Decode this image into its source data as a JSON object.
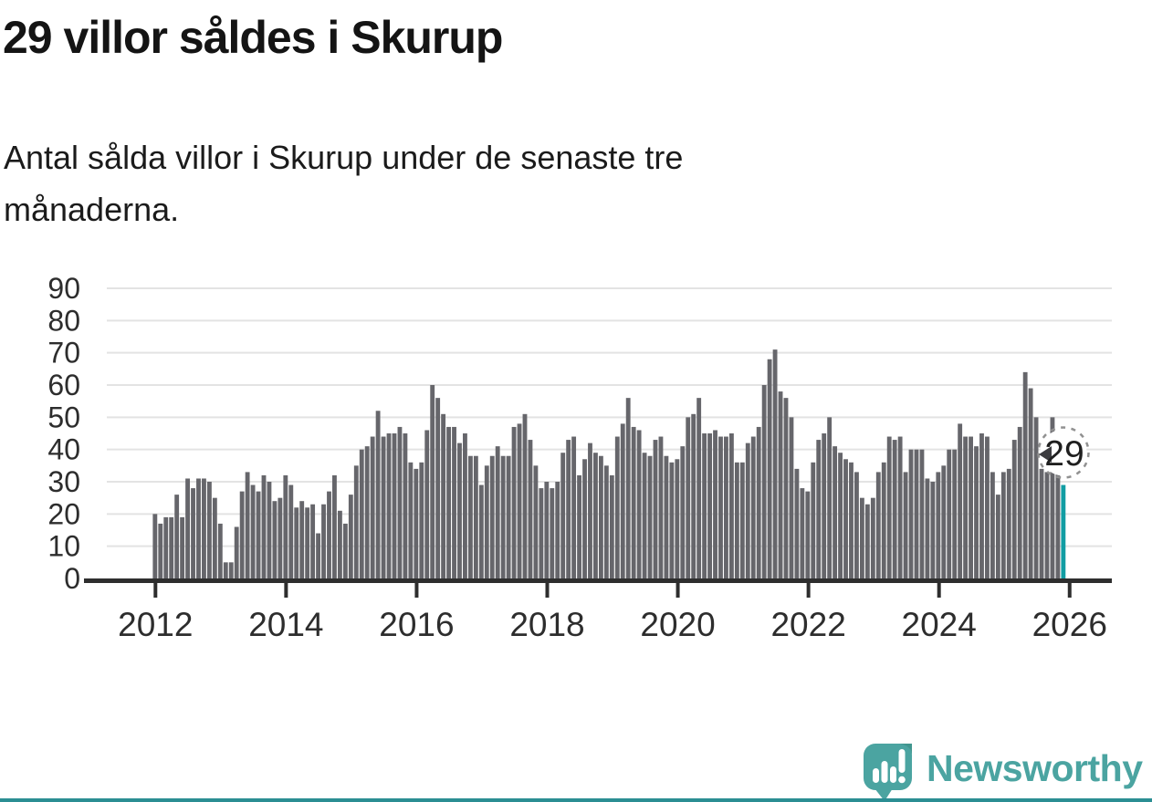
{
  "header": {
    "title": "29 villor såldes i Skurup",
    "subtitle_line1": "Antal sålda villor i Skurup under de senaste tre",
    "subtitle_line2": "månaderna."
  },
  "chart_data": {
    "type": "bar",
    "title": "29 villor såldes i Skurup",
    "subtitle": "Antal sålda villor i Skurup under de senaste tre månaderna.",
    "frequency": "monthly",
    "x_start": "2012-01",
    "x_end": "2025-12",
    "values": [
      20,
      17,
      19,
      19,
      26,
      19,
      31,
      28,
      31,
      31,
      30,
      25,
      17,
      5,
      5,
      16,
      27,
      33,
      29,
      27,
      32,
      30,
      24,
      25,
      32,
      29,
      22,
      24,
      22,
      23,
      14,
      23,
      27,
      32,
      21,
      17,
      26,
      35,
      40,
      41,
      44,
      52,
      44,
      45,
      45,
      47,
      45,
      36,
      34,
      36,
      46,
      60,
      56,
      51,
      47,
      47,
      42,
      45,
      38,
      38,
      29,
      35,
      38,
      41,
      38,
      38,
      47,
      48,
      51,
      43,
      35,
      28,
      30,
      28,
      30,
      39,
      43,
      44,
      32,
      37,
      42,
      39,
      38,
      35,
      32,
      44,
      48,
      56,
      47,
      46,
      39,
      38,
      43,
      44,
      38,
      36,
      37,
      41,
      50,
      51,
      56,
      45,
      45,
      46,
      44,
      44,
      45,
      36,
      36,
      42,
      44,
      47,
      60,
      68,
      71,
      58,
      56,
      50,
      34,
      28,
      27,
      36,
      43,
      45,
      50,
      41,
      39,
      37,
      36,
      33,
      25,
      23,
      25,
      33,
      36,
      44,
      43,
      44,
      33,
      40,
      40,
      40,
      31,
      30,
      33,
      35,
      40,
      40,
      48,
      44,
      44,
      41,
      45,
      44,
      33,
      26,
      33,
      34,
      43,
      47,
      64,
      59,
      50,
      34,
      33,
      50,
      33,
      29
    ],
    "ylim": [
      0,
      90
    ],
    "yticks": [
      0,
      10,
      20,
      30,
      40,
      50,
      60,
      70,
      80,
      90
    ],
    "xticks": [
      2012,
      2014,
      2016,
      2018,
      2020,
      2022,
      2024,
      2026
    ],
    "grid": true,
    "legend": "none",
    "highlight": {
      "position": "last",
      "value": 29,
      "label": "29",
      "annotation_style": "dashed-circle-callout"
    },
    "colors": {
      "bar": "#66666b",
      "highlight_bar": "#119da3",
      "gridline": "#e3e3e3",
      "axis": "#2e2e2e",
      "annotation_ring": "#919191",
      "annotation_arrow": "#3c3c40"
    }
  },
  "footer": {
    "brand": "Newsworthy",
    "brand_color": "#4ba4a1"
  }
}
